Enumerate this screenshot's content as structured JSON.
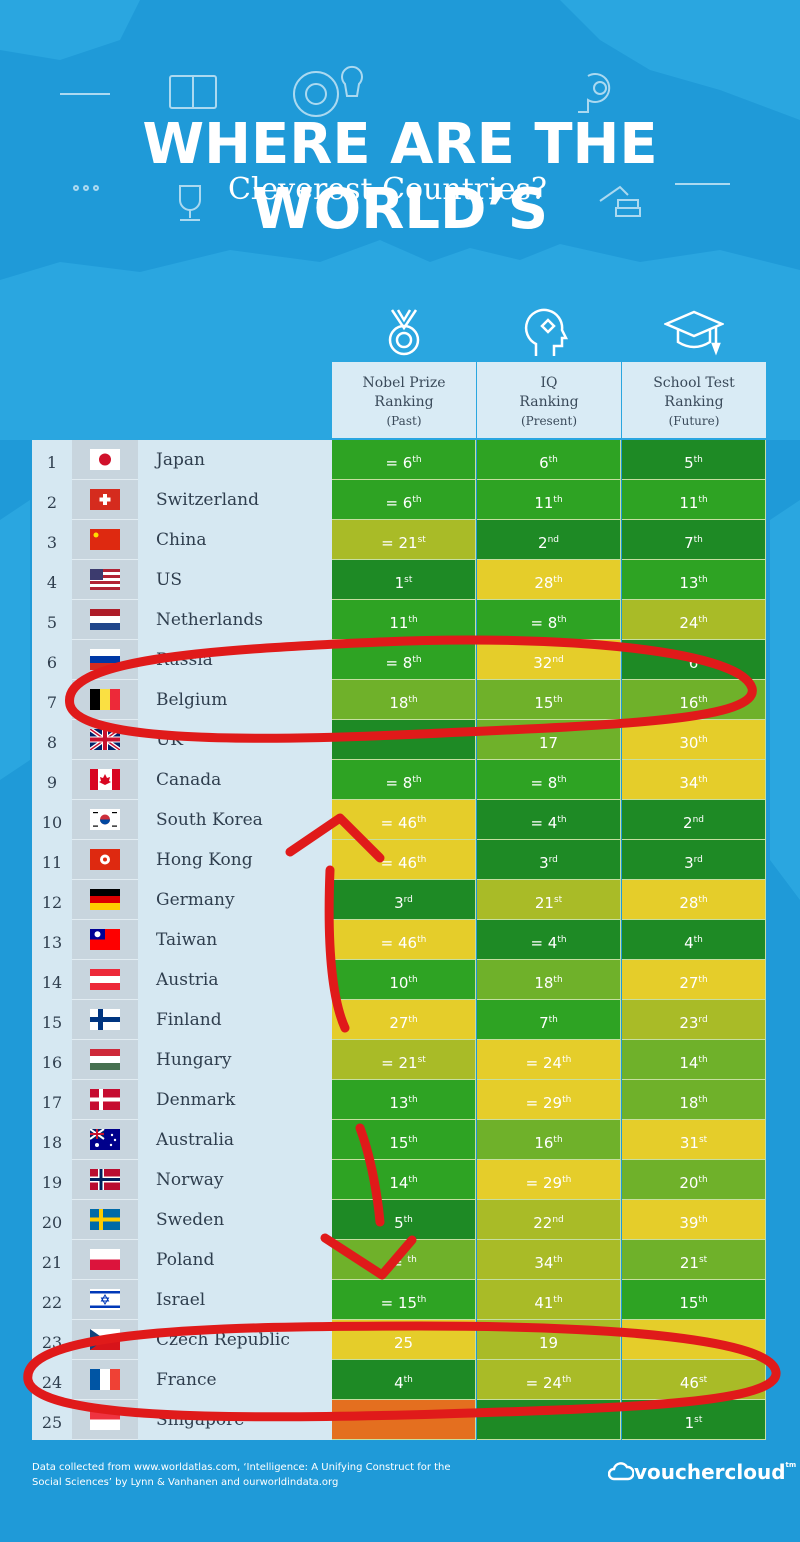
{
  "header": {
    "title": "WHERE ARE THE WORLD’S",
    "subtitle": "Cleverest Countries?"
  },
  "columns": [
    {
      "line1": "Nobel Prize",
      "line2": "Ranking",
      "line3": "(Past)",
      "icon": "medal-icon"
    },
    {
      "line1": "IQ",
      "line2": "Ranking",
      "line3": "(Present)",
      "icon": "brain-head-icon"
    },
    {
      "line1": "School Test",
      "line2": "Ranking",
      "line3": "(Future)",
      "icon": "graduation-cap-icon"
    }
  ],
  "rows": [
    {
      "rank": "1",
      "country": "Japan",
      "flag": "japan-flag-icon",
      "values": [
        [
          "= 6",
          "th"
        ],
        [
          "6",
          "th"
        ],
        [
          "5",
          "th"
        ]
      ]
    },
    {
      "rank": "2",
      "country": "Switzerland",
      "flag": "switzerland-flag-icon",
      "values": [
        [
          "= 6",
          "th"
        ],
        [
          "11",
          "th"
        ],
        [
          "11",
          "th"
        ]
      ]
    },
    {
      "rank": "3",
      "country": "China",
      "flag": "china-flag-icon",
      "values": [
        [
          "= 21",
          "st"
        ],
        [
          "2",
          "nd"
        ],
        [
          "7",
          "th"
        ]
      ]
    },
    {
      "rank": "4",
      "country": "US",
      "flag": "us-flag-icon",
      "values": [
        [
          "1",
          "st"
        ],
        [
          "28",
          "th"
        ],
        [
          "13",
          "th"
        ]
      ]
    },
    {
      "rank": "5",
      "country": "Netherlands",
      "flag": "netherlands-flag-icon",
      "values": [
        [
          "11",
          "th"
        ],
        [
          "= 8",
          "th"
        ],
        [
          "24",
          "th"
        ]
      ]
    },
    {
      "rank": "6",
      "country": "Russia",
      "flag": "russia-flag-icon",
      "values": [
        [
          "= 8",
          "th"
        ],
        [
          "32",
          "nd"
        ],
        [
          "6",
          ""
        ]
      ]
    },
    {
      "rank": "7",
      "country": "Belgium",
      "flag": "belgium-flag-icon",
      "values": [
        [
          "18",
          "th"
        ],
        [
          "15",
          "th"
        ],
        [
          "16",
          "th"
        ]
      ]
    },
    {
      "rank": "8",
      "country": "UK",
      "flag": "uk-flag-icon",
      "values": [
        [
          "",
          ""
        ],
        [
          "17",
          ""
        ],
        [
          "30",
          "th"
        ]
      ]
    },
    {
      "rank": "9",
      "country": "Canada",
      "flag": "canada-flag-icon",
      "values": [
        [
          "= 8",
          "th"
        ],
        [
          "= 8",
          "th"
        ],
        [
          "34",
          "th"
        ]
      ]
    },
    {
      "rank": "10",
      "country": "South Korea",
      "flag": "south-korea-flag-icon",
      "values": [
        [
          "= 46",
          "th"
        ],
        [
          "= 4",
          "th"
        ],
        [
          "2",
          "nd"
        ]
      ]
    },
    {
      "rank": "11",
      "country": "Hong Kong",
      "flag": "hong-kong-flag-icon",
      "values": [
        [
          "= 46",
          "th"
        ],
        [
          "3",
          "rd"
        ],
        [
          "3",
          "rd"
        ]
      ]
    },
    {
      "rank": "12",
      "country": "Germany",
      "flag": "germany-flag-icon",
      "values": [
        [
          "3",
          "rd"
        ],
        [
          "21",
          "st"
        ],
        [
          "28",
          "th"
        ]
      ]
    },
    {
      "rank": "13",
      "country": "Taiwan",
      "flag": "taiwan-flag-icon",
      "values": [
        [
          "= 46",
          "th"
        ],
        [
          "= 4",
          "th"
        ],
        [
          "4",
          "th"
        ]
      ]
    },
    {
      "rank": "14",
      "country": "Austria",
      "flag": "austria-flag-icon",
      "values": [
        [
          "10",
          "th"
        ],
        [
          "18",
          "th"
        ],
        [
          "27",
          "th"
        ]
      ]
    },
    {
      "rank": "15",
      "country": "Finland",
      "flag": "finland-flag-icon",
      "values": [
        [
          "27",
          "th"
        ],
        [
          "7",
          "th"
        ],
        [
          "23",
          "rd"
        ]
      ]
    },
    {
      "rank": "16",
      "country": "Hungary",
      "flag": "hungary-flag-icon",
      "values": [
        [
          "= 21",
          "st"
        ],
        [
          "= 24",
          "th"
        ],
        [
          "14",
          "th"
        ]
      ]
    },
    {
      "rank": "17",
      "country": "Denmark",
      "flag": "denmark-flag-icon",
      "values": [
        [
          "13",
          "th"
        ],
        [
          "= 29",
          "th"
        ],
        [
          "18",
          "th"
        ]
      ]
    },
    {
      "rank": "18",
      "country": "Australia",
      "flag": "australia-flag-icon",
      "values": [
        [
          "15",
          "th"
        ],
        [
          "16",
          "th"
        ],
        [
          "31",
          "st"
        ]
      ]
    },
    {
      "rank": "19",
      "country": "Norway",
      "flag": "norway-flag-icon",
      "values": [
        [
          "14",
          "th"
        ],
        [
          "= 29",
          "th"
        ],
        [
          "20",
          "th"
        ]
      ]
    },
    {
      "rank": "20",
      "country": "Sweden",
      "flag": "sweden-flag-icon",
      "values": [
        [
          "5",
          "th"
        ],
        [
          "22",
          "nd"
        ],
        [
          "39",
          "th"
        ]
      ]
    },
    {
      "rank": "21",
      "country": "Poland",
      "flag": "poland-flag-icon",
      "values": [
        [
          "= ",
          "th"
        ],
        [
          "34",
          "th"
        ],
        [
          "21",
          "st"
        ]
      ]
    },
    {
      "rank": "22",
      "country": "Israel",
      "flag": "israel-flag-icon",
      "values": [
        [
          "= 15",
          "th"
        ],
        [
          "41",
          "th"
        ],
        [
          "15",
          "th"
        ]
      ]
    },
    {
      "rank": "23",
      "country": "Czech Republic",
      "flag": "czech-flag-icon",
      "values": [
        [
          "25",
          ""
        ],
        [
          "19",
          ""
        ],
        [
          "",
          ""
        ]
      ]
    },
    {
      "rank": "24",
      "country": "France",
      "flag": "france-flag-icon",
      "values": [
        [
          "4",
          "th"
        ],
        [
          "= 24",
          "th"
        ],
        [
          "46",
          "st"
        ]
      ]
    },
    {
      "rank": "25",
      "country": "Singapore",
      "flag": "singapore-flag-icon",
      "values": [
        [
          "",
          ""
        ],
        [
          "",
          ""
        ],
        [
          "1",
          "st"
        ]
      ]
    }
  ],
  "footer": {
    "line1": "Data collected from www.worldatlas.com, ‘Intelligence: A Unifying Construct for the",
    "line2": "Social Sciences’ by Lynn & Vanhanen and ourworldindata.org",
    "brand": "vouchercloud",
    "brand_mark": "tm"
  },
  "colors": {
    "background": "#1f9ad8",
    "dark_green": "#1e8a25",
    "green": "#2ea323",
    "light_green": "#6fb12a",
    "olive": "#a9bb27",
    "yellow": "#e5cd2a",
    "orange": "#e46f1f",
    "annotation_red": "#e01a1a"
  }
}
